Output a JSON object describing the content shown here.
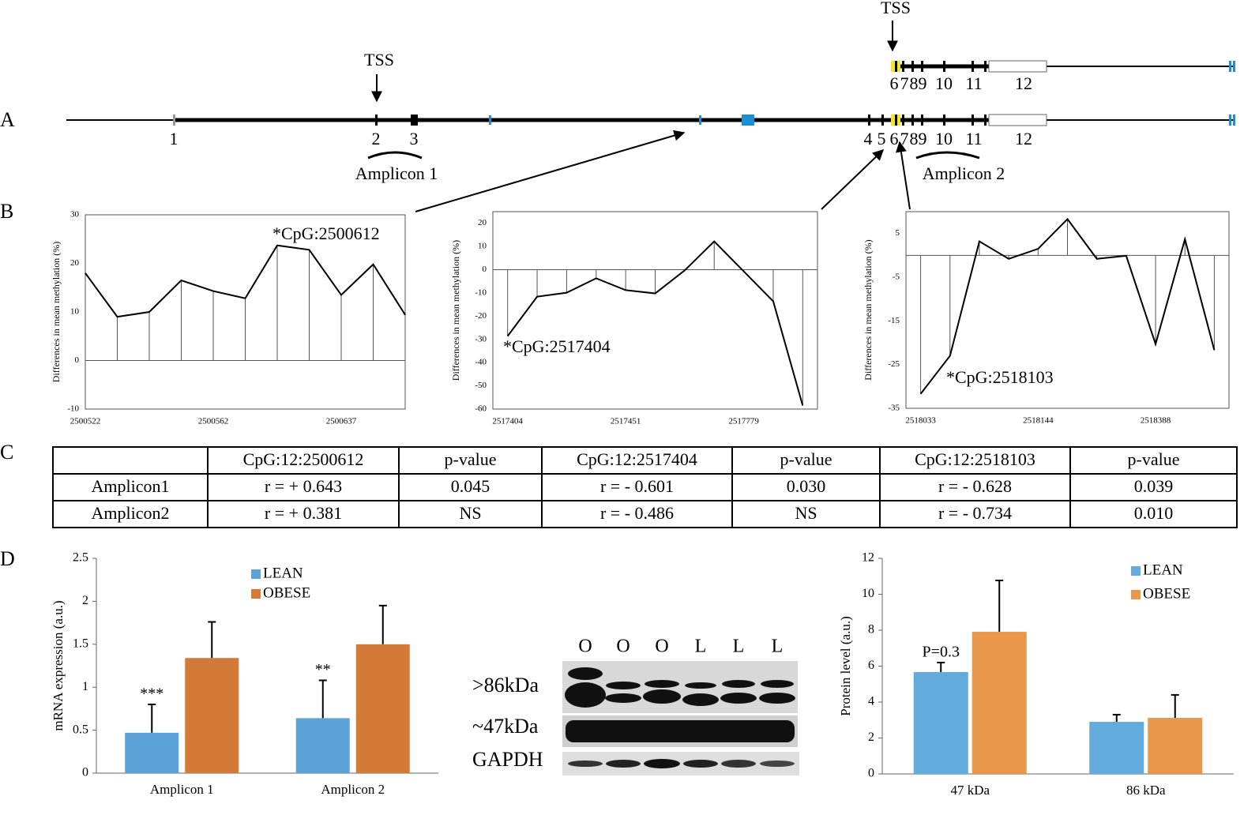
{
  "panel_labels": [
    "A",
    "B",
    "C",
    "D"
  ],
  "gene_diagram": {
    "tss_labels": [
      "TSS",
      "TSS"
    ],
    "exon_labels": [
      "1",
      "2",
      "3",
      "4",
      "5",
      "6",
      "7",
      "8",
      "9",
      "10",
      "11",
      "12"
    ],
    "upper_exon_labels": [
      "6",
      "7",
      "8",
      "9",
      "10",
      "11",
      "12"
    ],
    "amplicon_labels": [
      "Amplicon 1",
      "Amplicon 2"
    ]
  },
  "chart_data": [
    {
      "type": "line",
      "ylabel": "Differences in mean methylation (%)",
      "color": "#000000",
      "categories": [
        "2500522",
        null,
        null,
        null,
        "2500562",
        null,
        null,
        null,
        "2500637",
        null,
        null
      ],
      "values": [
        18,
        9,
        10,
        16.5,
        14.3,
        12.8,
        23.7,
        22.8,
        13.5,
        19.8,
        9.4
      ],
      "ylim": [
        -10,
        30
      ],
      "yticks": [
        -10,
        0,
        10,
        20,
        30
      ],
      "annotation": "*CpG:2500612"
    },
    {
      "type": "line",
      "ylabel": "Differences in mean methylation (%)",
      "color": "#000000",
      "categories": [
        "2517404",
        null,
        null,
        null,
        "2517451",
        null,
        null,
        null,
        "2517779",
        null,
        null
      ],
      "values": [
        -28.6,
        -11.6,
        -9.9,
        -3.7,
        -8.8,
        -10.2,
        -0.3,
        12.2,
        -0.7,
        -13.6,
        -58.5
      ],
      "ylim": [
        -60,
        25
      ],
      "yticks": [
        -60,
        -50,
        -40,
        -30,
        -20,
        -10,
        0,
        10,
        20
      ],
      "annotation": "*CpG:2517404"
    },
    {
      "type": "line",
      "ylabel": "Differences in mean methylation (%)",
      "color": "#000000",
      "categories": [
        "2518033",
        null,
        null,
        null,
        "2518144",
        null,
        null,
        null,
        "2518388",
        null,
        null
      ],
      "values": [
        -31.7,
        -23,
        3.2,
        -0.8,
        1.5,
        8.3,
        -0.8,
        -0.1,
        -20.3,
        3.7,
        -21.7
      ],
      "ylim": [
        -35,
        10
      ],
      "yticks": [
        -35,
        -25,
        -15,
        -5,
        5
      ],
      "annotation": "*CpG:2518103"
    },
    {
      "type": "bar",
      "ylabel": "mRNA expression (a.u.)",
      "categories": [
        "Amplicon 1",
        "Amplicon 2"
      ],
      "series": [
        {
          "name": "LEAN",
          "color": "#5ba3d9",
          "values": [
            0.47,
            0.64
          ],
          "errors": [
            0.33,
            0.44
          ]
        },
        {
          "name": "OBESE",
          "color": "#d47a38",
          "values": [
            1.34,
            1.5
          ],
          "errors": [
            0.42,
            0.45
          ]
        }
      ],
      "ylim": [
        0,
        2.5
      ],
      "yticks": [
        0,
        0.5,
        1,
        1.5,
        2,
        2.5
      ],
      "annotations": [
        "***",
        "**"
      ]
    },
    {
      "type": "bar",
      "ylabel": "Protein level (a.u.)",
      "categories": [
        "47 kDa",
        "86 kDa"
      ],
      "series": [
        {
          "name": "LEAN",
          "color": "#62acdd",
          "values": [
            5.67,
            2.9
          ],
          "errors": [
            0.53,
            0.4
          ]
        },
        {
          "name": "OBESE",
          "color": "#e8974b",
          "values": [
            7.91,
            3.12
          ],
          "errors": [
            2.86,
            1.28
          ]
        }
      ],
      "ylim": [
        0,
        12
      ],
      "yticks": [
        0,
        2,
        4,
        6,
        8,
        10,
        12
      ],
      "annotations": [
        "P=0.3",
        null
      ]
    }
  ],
  "table": {
    "header": [
      "CpG:12:2500612",
      "p-value",
      "CpG:12:2517404",
      "p-value",
      "CpG:12:2518103",
      "p-value"
    ],
    "rows": [
      {
        "label": "Amplicon1",
        "cells": [
          "r = + 0.643",
          "0.045",
          "r = - 0.601",
          "0.030",
          "r = - 0.628",
          "0.039"
        ]
      },
      {
        "label": "Amplicon2",
        "cells": [
          "r = + 0.381",
          "NS",
          "r = - 0.486",
          "NS",
          "r = - 0.734",
          "0.010"
        ]
      }
    ]
  },
  "blot": {
    "lane_labels": [
      "O",
      "O",
      "O",
      "L",
      "L",
      "L"
    ],
    "band_labels": [
      ">86kDa",
      "~47kDa",
      "GAPDH"
    ]
  }
}
